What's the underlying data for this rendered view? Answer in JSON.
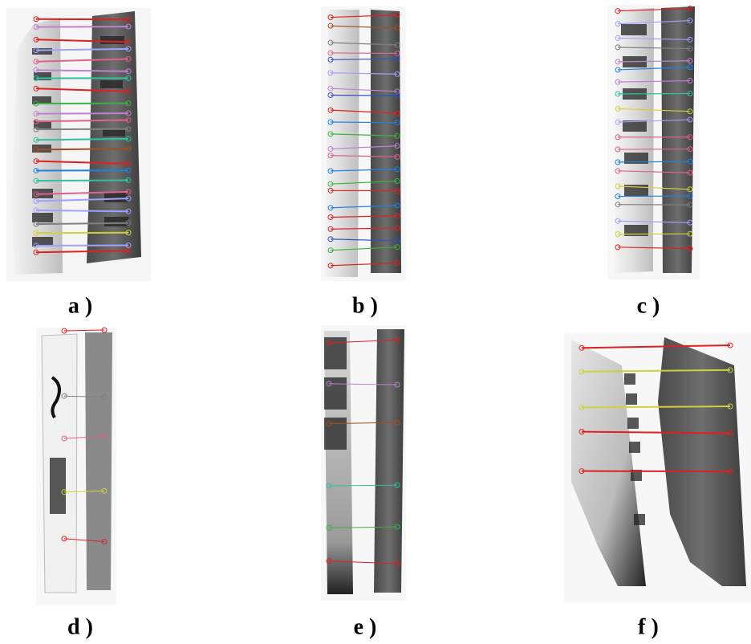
{
  "panels": [
    {
      "label": "a )"
    },
    {
      "label": "b )"
    },
    {
      "label": "c )"
    },
    {
      "label": "d )"
    },
    {
      "label": "e )"
    },
    {
      "label": "f )"
    }
  ]
}
